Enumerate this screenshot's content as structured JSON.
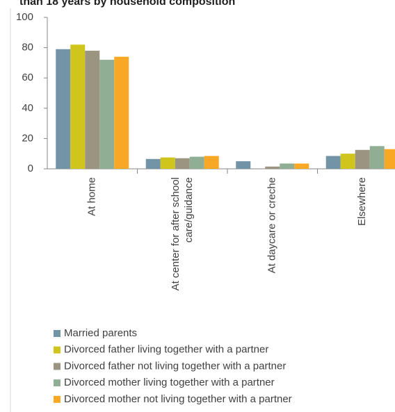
{
  "chart_data": {
    "type": "bar",
    "title": "than 18 years by household composition",
    "categories": [
      "At home",
      "At center for after school care/guidance",
      "At daycare or creche",
      "Elsewhere"
    ],
    "series": [
      {
        "name": "Married parents",
        "color": "#7393a7",
        "values": [
          79,
          6.5,
          5,
          8.5
        ]
      },
      {
        "name": "Divorced father living together with a partner",
        "color": "#cfc51c",
        "values": [
          82,
          7.5,
          null,
          10
        ]
      },
      {
        "name": "Divorced father not living together with a partner",
        "color": "#9a9480",
        "values": [
          78,
          7,
          1.5,
          12.5
        ]
      },
      {
        "name": "Divorced mother living together with a partner",
        "color": "#8fae94",
        "values": [
          72,
          8,
          3.5,
          15
        ]
      },
      {
        "name": "Divorced mother not living together with a partner",
        "color": "#f9a825",
        "values": [
          74,
          8.5,
          3.5,
          13
        ]
      }
    ],
    "ylim": [
      0,
      100
    ],
    "yticks": [
      0,
      20,
      40,
      60,
      80,
      100
    ],
    "grid": false
  }
}
